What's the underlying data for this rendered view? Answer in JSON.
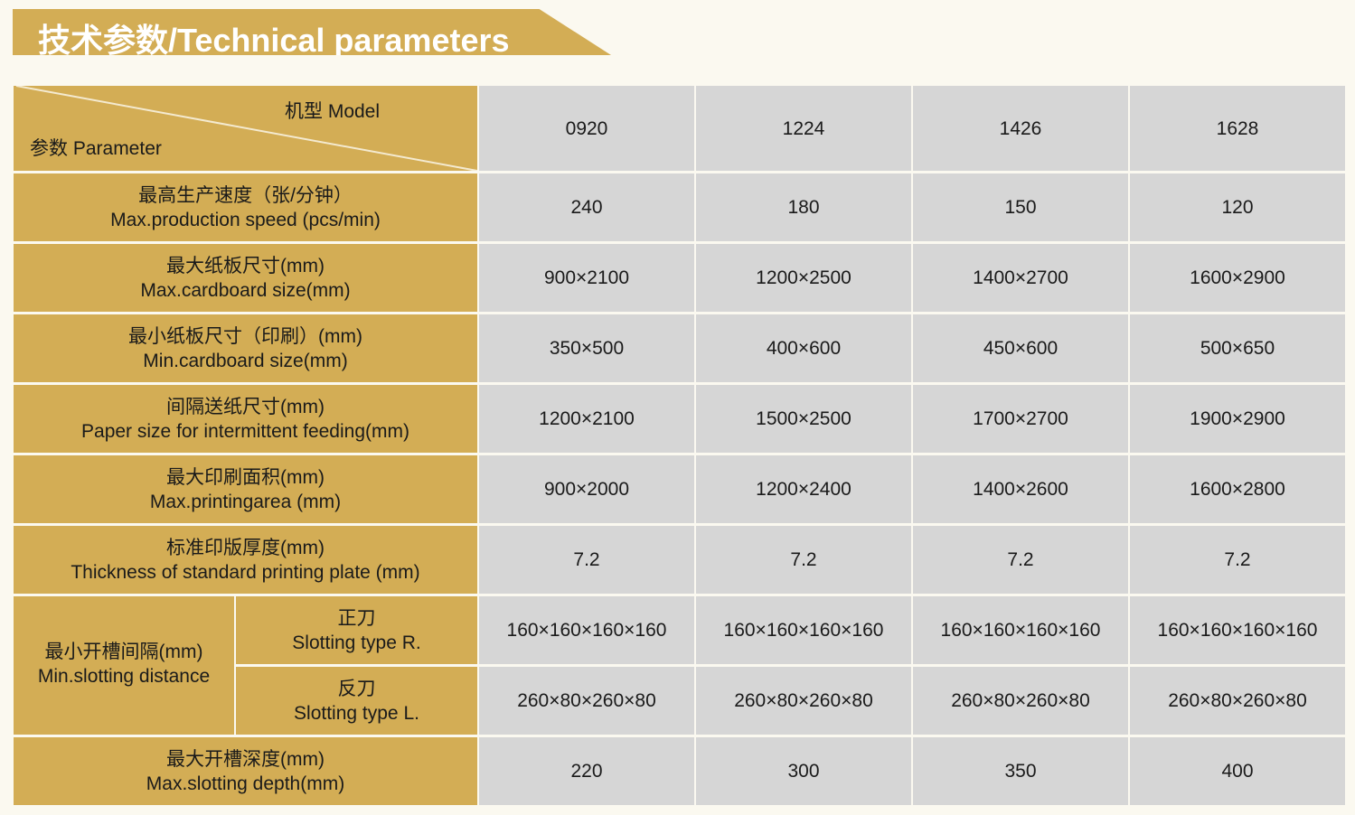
{
  "title": "技术参数/Technical parameters",
  "header": {
    "model_label": "机型 Model",
    "parameter_label": "参数 Parameter",
    "models": [
      "0920",
      "1224",
      "1426",
      "1628"
    ]
  },
  "rows": [
    {
      "cn": "最高生产速度（张/分钟）",
      "en": "Max.production speed (pcs/min)",
      "values": [
        "240",
        "180",
        "150",
        "120"
      ]
    },
    {
      "cn": "最大纸板尺寸(mm)",
      "en": "Max.cardboard size(mm)",
      "values": [
        "900×2100",
        "1200×2500",
        "1400×2700",
        "1600×2900"
      ]
    },
    {
      "cn": "最小纸板尺寸（印刷）(mm)",
      "en": "Min.cardboard size(mm)",
      "values": [
        "350×500",
        "400×600",
        "450×600",
        "500×650"
      ]
    },
    {
      "cn": "间隔送纸尺寸(mm)",
      "en": "Paper size for intermittent feeding(mm)",
      "values": [
        "1200×2100",
        "1500×2500",
        "1700×2700",
        "1900×2900"
      ]
    },
    {
      "cn": "最大印刷面积(mm)",
      "en": "Max.printingarea (mm)",
      "values": [
        "900×2000",
        "1200×2400",
        "1400×2600",
        "1600×2800"
      ]
    },
    {
      "cn": "标准印版厚度(mm)",
      "en": "Thickness of standard printing plate (mm)",
      "values": [
        "7.2",
        "7.2",
        "7.2",
        "7.2"
      ]
    }
  ],
  "slotting": {
    "cn": "最小开槽间隔(mm)",
    "en": "Min.slotting distance",
    "sub": [
      {
        "cn": "正刀",
        "en": "Slotting type R.",
        "values": [
          "160×160×160×160",
          "160×160×160×160",
          "160×160×160×160",
          "160×160×160×160"
        ]
      },
      {
        "cn": "反刀",
        "en": "Slotting type L.",
        "values": [
          "260×80×260×80",
          "260×80×260×80",
          "260×80×260×80",
          "260×80×260×80"
        ]
      }
    ]
  },
  "last": {
    "cn": "最大开槽深度(mm)",
    "en": "Max.slotting depth(mm)",
    "values": [
      "220",
      "300",
      "350",
      "400"
    ]
  },
  "colors": {
    "gold": "#d3ad55",
    "gray": "#d6d6d6",
    "background": "#fbf9f0"
  }
}
